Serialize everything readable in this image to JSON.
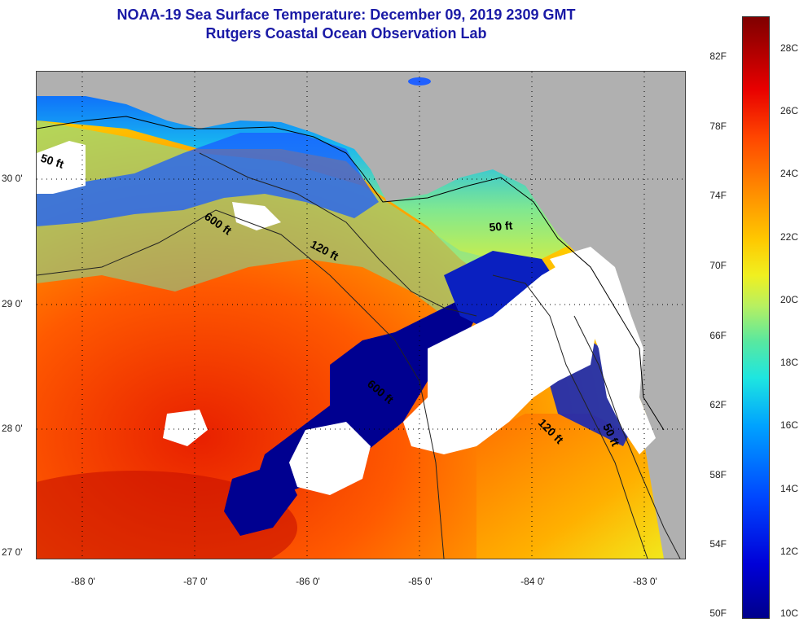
{
  "title": {
    "line1": "NOAA-19 Sea Surface Temperature:  December 09, 2019 2309 GMT",
    "line2": "Rutgers Coastal Ocean Observation Lab"
  },
  "map": {
    "lat_labels": [
      "30 0'",
      "29 0'",
      "28 0'",
      "27 0'"
    ],
    "lon_labels": [
      "-88 0'",
      "-87 0'",
      "-86 0'",
      "-85 0'",
      "-84 0'",
      "-83 0'"
    ],
    "contour_labels": [
      "50 ft",
      "600 ft",
      "120 ft",
      "50 ft",
      "600 ft",
      "120 ft",
      "50 ft"
    ],
    "colors": {
      "land": "#b0b0b0",
      "cloud": "#ffffff",
      "warm": "#ff4500",
      "cold": "#00008b"
    }
  },
  "colorbar": {
    "fahrenheit_labels": [
      "82F",
      "78F",
      "74F",
      "70F",
      "66F",
      "62F",
      "58F",
      "54F",
      "50F"
    ],
    "celsius_labels": [
      "28C",
      "26C",
      "24C",
      "22C",
      "20C",
      "18C",
      "16C",
      "14C",
      "12C",
      "10C"
    ],
    "scale_low": "#00008b",
    "scale_high": "#800000"
  }
}
